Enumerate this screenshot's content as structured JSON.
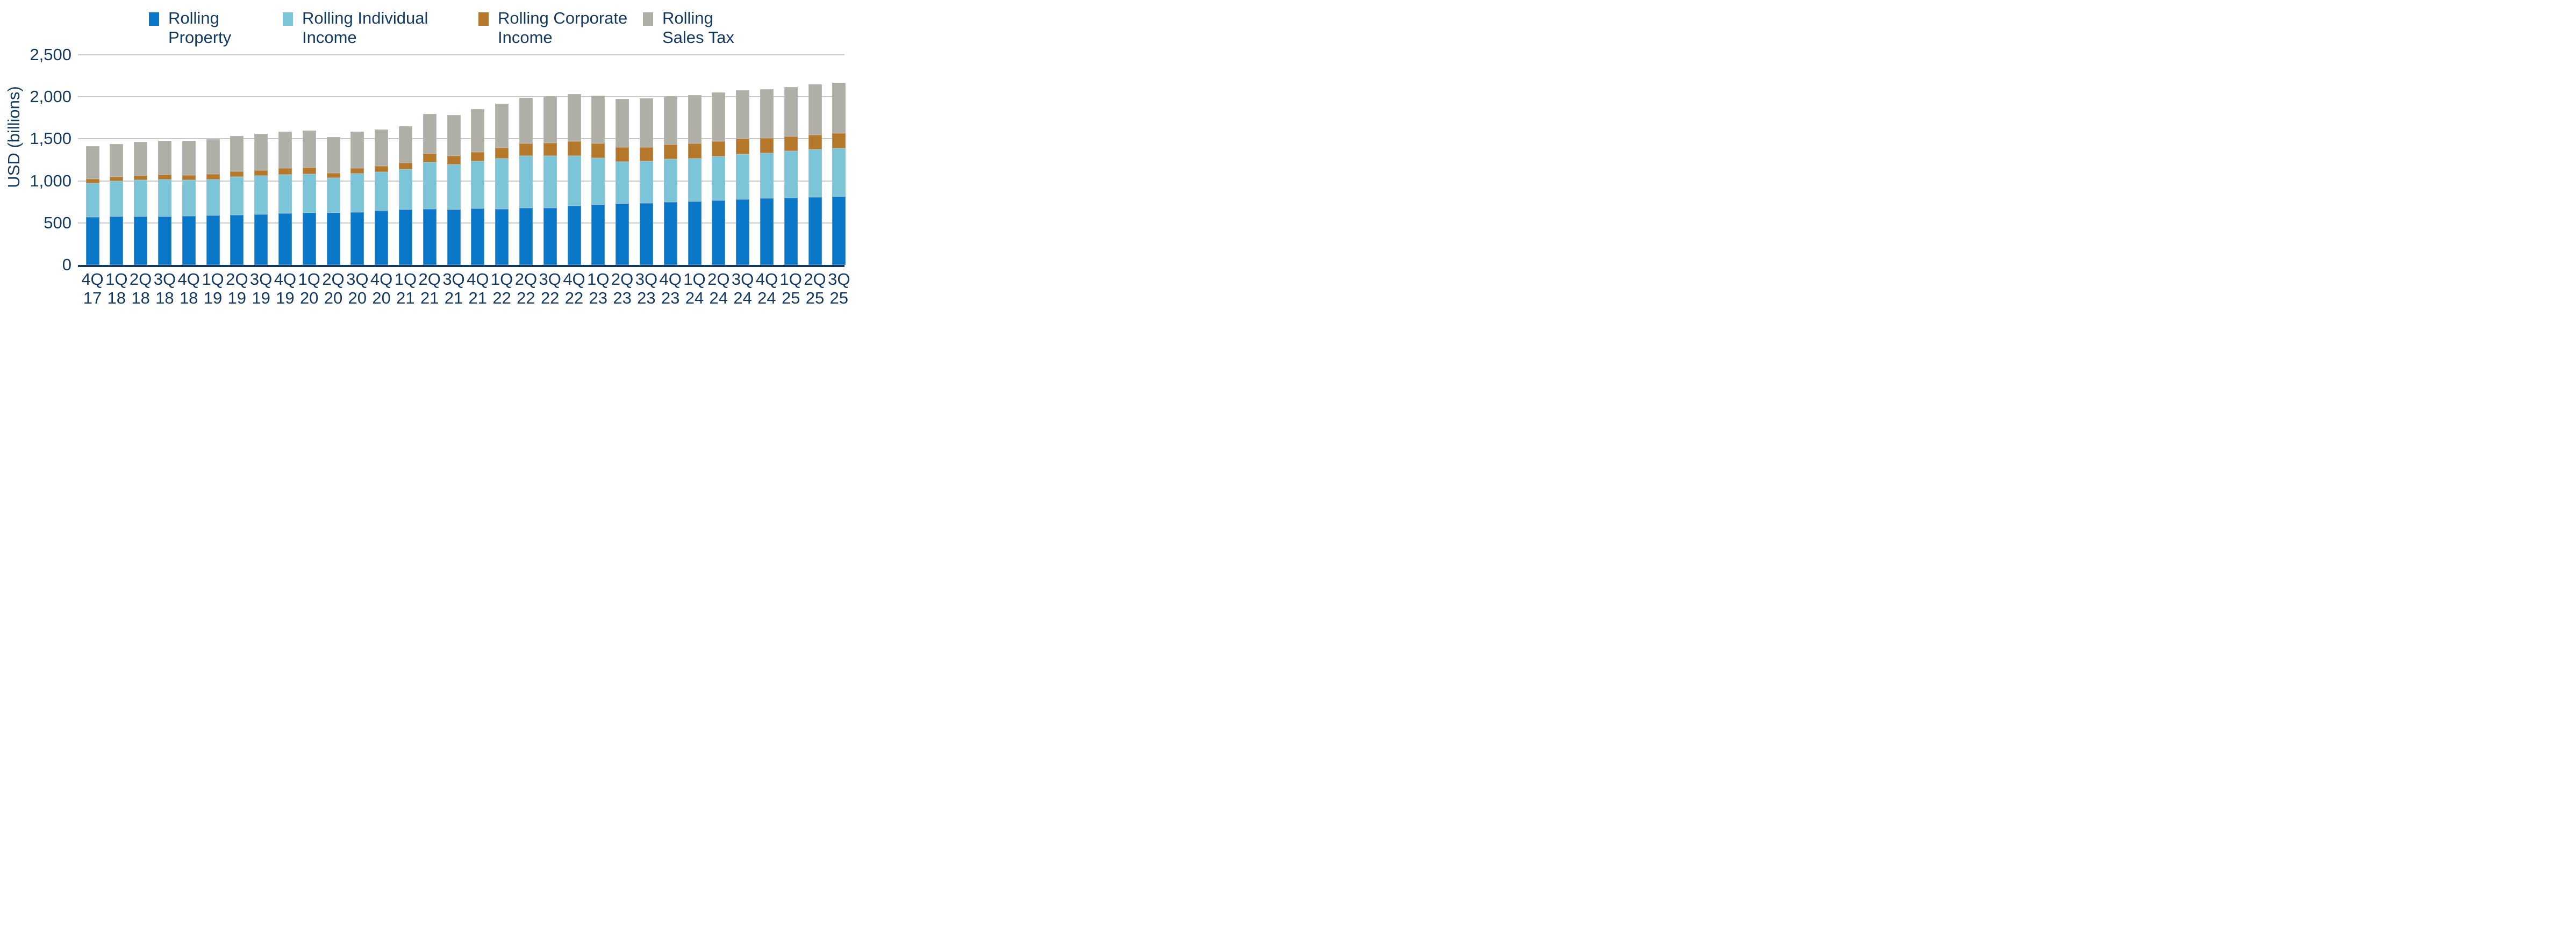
{
  "chart_data": {
    "type": "bar",
    "stacked": true,
    "title": "",
    "xlabel": "",
    "ylabel": "USD (billions)",
    "ylim": [
      0,
      2500
    ],
    "yticks": [
      0,
      500,
      1000,
      1500,
      2000,
      2500
    ],
    "ytick_labels": [
      "0",
      "500",
      "1,000",
      "1,500",
      "2,000",
      "2,500"
    ],
    "grid": true,
    "legend_position": "top",
    "categories": [
      "4Q 17",
      "1Q 18",
      "2Q 18",
      "3Q 18",
      "4Q 18",
      "1Q 19",
      "2Q 19",
      "3Q 19",
      "4Q 19",
      "1Q 20",
      "2Q 20",
      "3Q 20",
      "4Q 20",
      "1Q 21",
      "2Q 21",
      "3Q 21",
      "4Q 21",
      "1Q 22",
      "2Q 22",
      "3Q 22",
      "4Q 22",
      "1Q 23",
      "2Q 23",
      "3Q 23",
      "4Q 23",
      "1Q 24",
      "2Q 24",
      "3Q 24",
      "4Q 24",
      "1Q 25",
      "2Q 25",
      "3Q 25"
    ],
    "series": [
      {
        "name": "Rolling Property",
        "legend_lines": [
          "Rolling",
          "Property"
        ],
        "color": "#0b77c8",
        "values": [
          570,
          574,
          576,
          578,
          580,
          589,
          595,
          601,
          611,
          618,
          620,
          627,
          643,
          656,
          663,
          659,
          669,
          668,
          675,
          677,
          705,
          715,
          726,
          733,
          745,
          756,
          767,
          781,
          791,
          799,
          804,
          809
        ]
      },
      {
        "name": "Rolling Individual Income",
        "legend_lines": [
          "Rolling Individual",
          "Income"
        ],
        "color": "#7cc5d8",
        "values": [
          405,
          421,
          433,
          438,
          429,
          427,
          454,
          458,
          464,
          462,
          414,
          457,
          464,
          483,
          557,
          537,
          567,
          595,
          620,
          620,
          595,
          559,
          502,
          501,
          514,
          512,
          523,
          536,
          540,
          554,
          572,
          579
        ]
      },
      {
        "name": "Rolling Corporate Income",
        "legend_lines": [
          "Rolling Corporate",
          "Income"
        ],
        "color": "#b5772a",
        "values": [
          50,
          51,
          50,
          57,
          57,
          63,
          65,
          66,
          73,
          77,
          59,
          67,
          72,
          78,
          101,
          100,
          109,
          129,
          153,
          156,
          168,
          168,
          170,
          167,
          173,
          175,
          183,
          183,
          176,
          176,
          172,
          177
        ]
      },
      {
        "name": "Rolling Sales Tax",
        "legend_lines": [
          "Rolling",
          "Sales Tax"
        ],
        "color": "#b0afa7",
        "values": [
          390,
          395,
          405,
          402,
          408,
          414,
          422,
          432,
          438,
          442,
          429,
          432,
          434,
          435,
          474,
          488,
          512,
          528,
          538,
          555,
          563,
          575,
          576,
          579,
          577,
          575,
          581,
          577,
          585,
          588,
          600,
          600
        ]
      }
    ]
  },
  "colors": {
    "text_navy": "#14395f",
    "gridline": "#c9c9c9",
    "axis_baseline": "#14395f",
    "background": "#ffffff"
  }
}
